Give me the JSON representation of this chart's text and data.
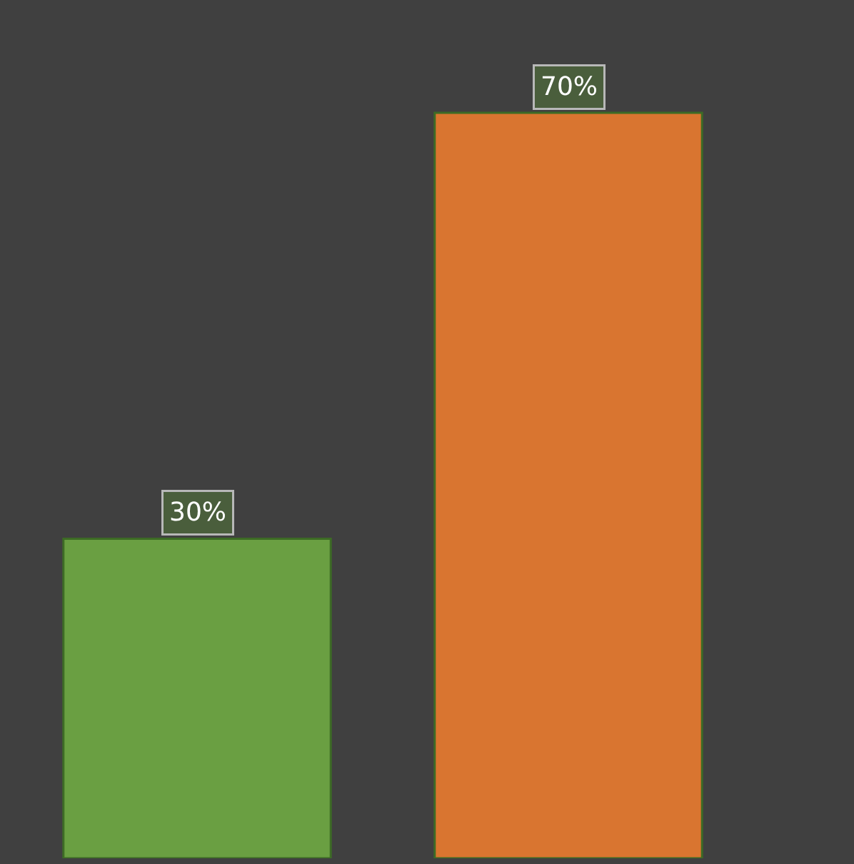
{
  "chart_data": {
    "type": "bar",
    "categories": [
      null,
      null
    ],
    "values": [
      30,
      70
    ],
    "colors": [
      "#6a9f42",
      "#d97530"
    ],
    "value_labels": [
      "30%",
      "70%"
    ]
  }
}
